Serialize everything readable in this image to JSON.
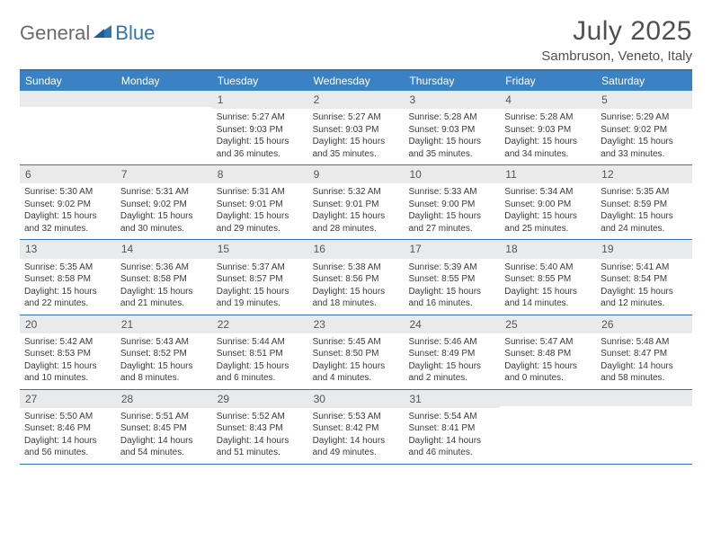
{
  "brand": {
    "part1": "General",
    "part2": "Blue"
  },
  "title": "July 2025",
  "location": "Sambruson, Veneto, Italy",
  "colors": {
    "header_bg": "#3a82c4",
    "rule": "#2f74b5",
    "daynum_bg": "#e8eaec",
    "text": "#3a3a3a",
    "title_text": "#505050"
  },
  "dow": [
    "Sunday",
    "Monday",
    "Tuesday",
    "Wednesday",
    "Thursday",
    "Friday",
    "Saturday"
  ],
  "weeks": [
    [
      null,
      null,
      {
        "n": "1",
        "sr": "5:27 AM",
        "ss": "9:03 PM",
        "dl": "15 hours and 36 minutes."
      },
      {
        "n": "2",
        "sr": "5:27 AM",
        "ss": "9:03 PM",
        "dl": "15 hours and 35 minutes."
      },
      {
        "n": "3",
        "sr": "5:28 AM",
        "ss": "9:03 PM",
        "dl": "15 hours and 35 minutes."
      },
      {
        "n": "4",
        "sr": "5:28 AM",
        "ss": "9:03 PM",
        "dl": "15 hours and 34 minutes."
      },
      {
        "n": "5",
        "sr": "5:29 AM",
        "ss": "9:02 PM",
        "dl": "15 hours and 33 minutes."
      }
    ],
    [
      {
        "n": "6",
        "sr": "5:30 AM",
        "ss": "9:02 PM",
        "dl": "15 hours and 32 minutes."
      },
      {
        "n": "7",
        "sr": "5:31 AM",
        "ss": "9:02 PM",
        "dl": "15 hours and 30 minutes."
      },
      {
        "n": "8",
        "sr": "5:31 AM",
        "ss": "9:01 PM",
        "dl": "15 hours and 29 minutes."
      },
      {
        "n": "9",
        "sr": "5:32 AM",
        "ss": "9:01 PM",
        "dl": "15 hours and 28 minutes."
      },
      {
        "n": "10",
        "sr": "5:33 AM",
        "ss": "9:00 PM",
        "dl": "15 hours and 27 minutes."
      },
      {
        "n": "11",
        "sr": "5:34 AM",
        "ss": "9:00 PM",
        "dl": "15 hours and 25 minutes."
      },
      {
        "n": "12",
        "sr": "5:35 AM",
        "ss": "8:59 PM",
        "dl": "15 hours and 24 minutes."
      }
    ],
    [
      {
        "n": "13",
        "sr": "5:35 AM",
        "ss": "8:58 PM",
        "dl": "15 hours and 22 minutes."
      },
      {
        "n": "14",
        "sr": "5:36 AM",
        "ss": "8:58 PM",
        "dl": "15 hours and 21 minutes."
      },
      {
        "n": "15",
        "sr": "5:37 AM",
        "ss": "8:57 PM",
        "dl": "15 hours and 19 minutes."
      },
      {
        "n": "16",
        "sr": "5:38 AM",
        "ss": "8:56 PM",
        "dl": "15 hours and 18 minutes."
      },
      {
        "n": "17",
        "sr": "5:39 AM",
        "ss": "8:55 PM",
        "dl": "15 hours and 16 minutes."
      },
      {
        "n": "18",
        "sr": "5:40 AM",
        "ss": "8:55 PM",
        "dl": "15 hours and 14 minutes."
      },
      {
        "n": "19",
        "sr": "5:41 AM",
        "ss": "8:54 PM",
        "dl": "15 hours and 12 minutes."
      }
    ],
    [
      {
        "n": "20",
        "sr": "5:42 AM",
        "ss": "8:53 PM",
        "dl": "15 hours and 10 minutes."
      },
      {
        "n": "21",
        "sr": "5:43 AM",
        "ss": "8:52 PM",
        "dl": "15 hours and 8 minutes."
      },
      {
        "n": "22",
        "sr": "5:44 AM",
        "ss": "8:51 PM",
        "dl": "15 hours and 6 minutes."
      },
      {
        "n": "23",
        "sr": "5:45 AM",
        "ss": "8:50 PM",
        "dl": "15 hours and 4 minutes."
      },
      {
        "n": "24",
        "sr": "5:46 AM",
        "ss": "8:49 PM",
        "dl": "15 hours and 2 minutes."
      },
      {
        "n": "25",
        "sr": "5:47 AM",
        "ss": "8:48 PM",
        "dl": "15 hours and 0 minutes."
      },
      {
        "n": "26",
        "sr": "5:48 AM",
        "ss": "8:47 PM",
        "dl": "14 hours and 58 minutes."
      }
    ],
    [
      {
        "n": "27",
        "sr": "5:50 AM",
        "ss": "8:46 PM",
        "dl": "14 hours and 56 minutes."
      },
      {
        "n": "28",
        "sr": "5:51 AM",
        "ss": "8:45 PM",
        "dl": "14 hours and 54 minutes."
      },
      {
        "n": "29",
        "sr": "5:52 AM",
        "ss": "8:43 PM",
        "dl": "14 hours and 51 minutes."
      },
      {
        "n": "30",
        "sr": "5:53 AM",
        "ss": "8:42 PM",
        "dl": "14 hours and 49 minutes."
      },
      {
        "n": "31",
        "sr": "5:54 AM",
        "ss": "8:41 PM",
        "dl": "14 hours and 46 minutes."
      },
      null,
      null
    ]
  ],
  "labels": {
    "sunrise": "Sunrise: ",
    "sunset": "Sunset: ",
    "daylight": "Daylight: "
  }
}
